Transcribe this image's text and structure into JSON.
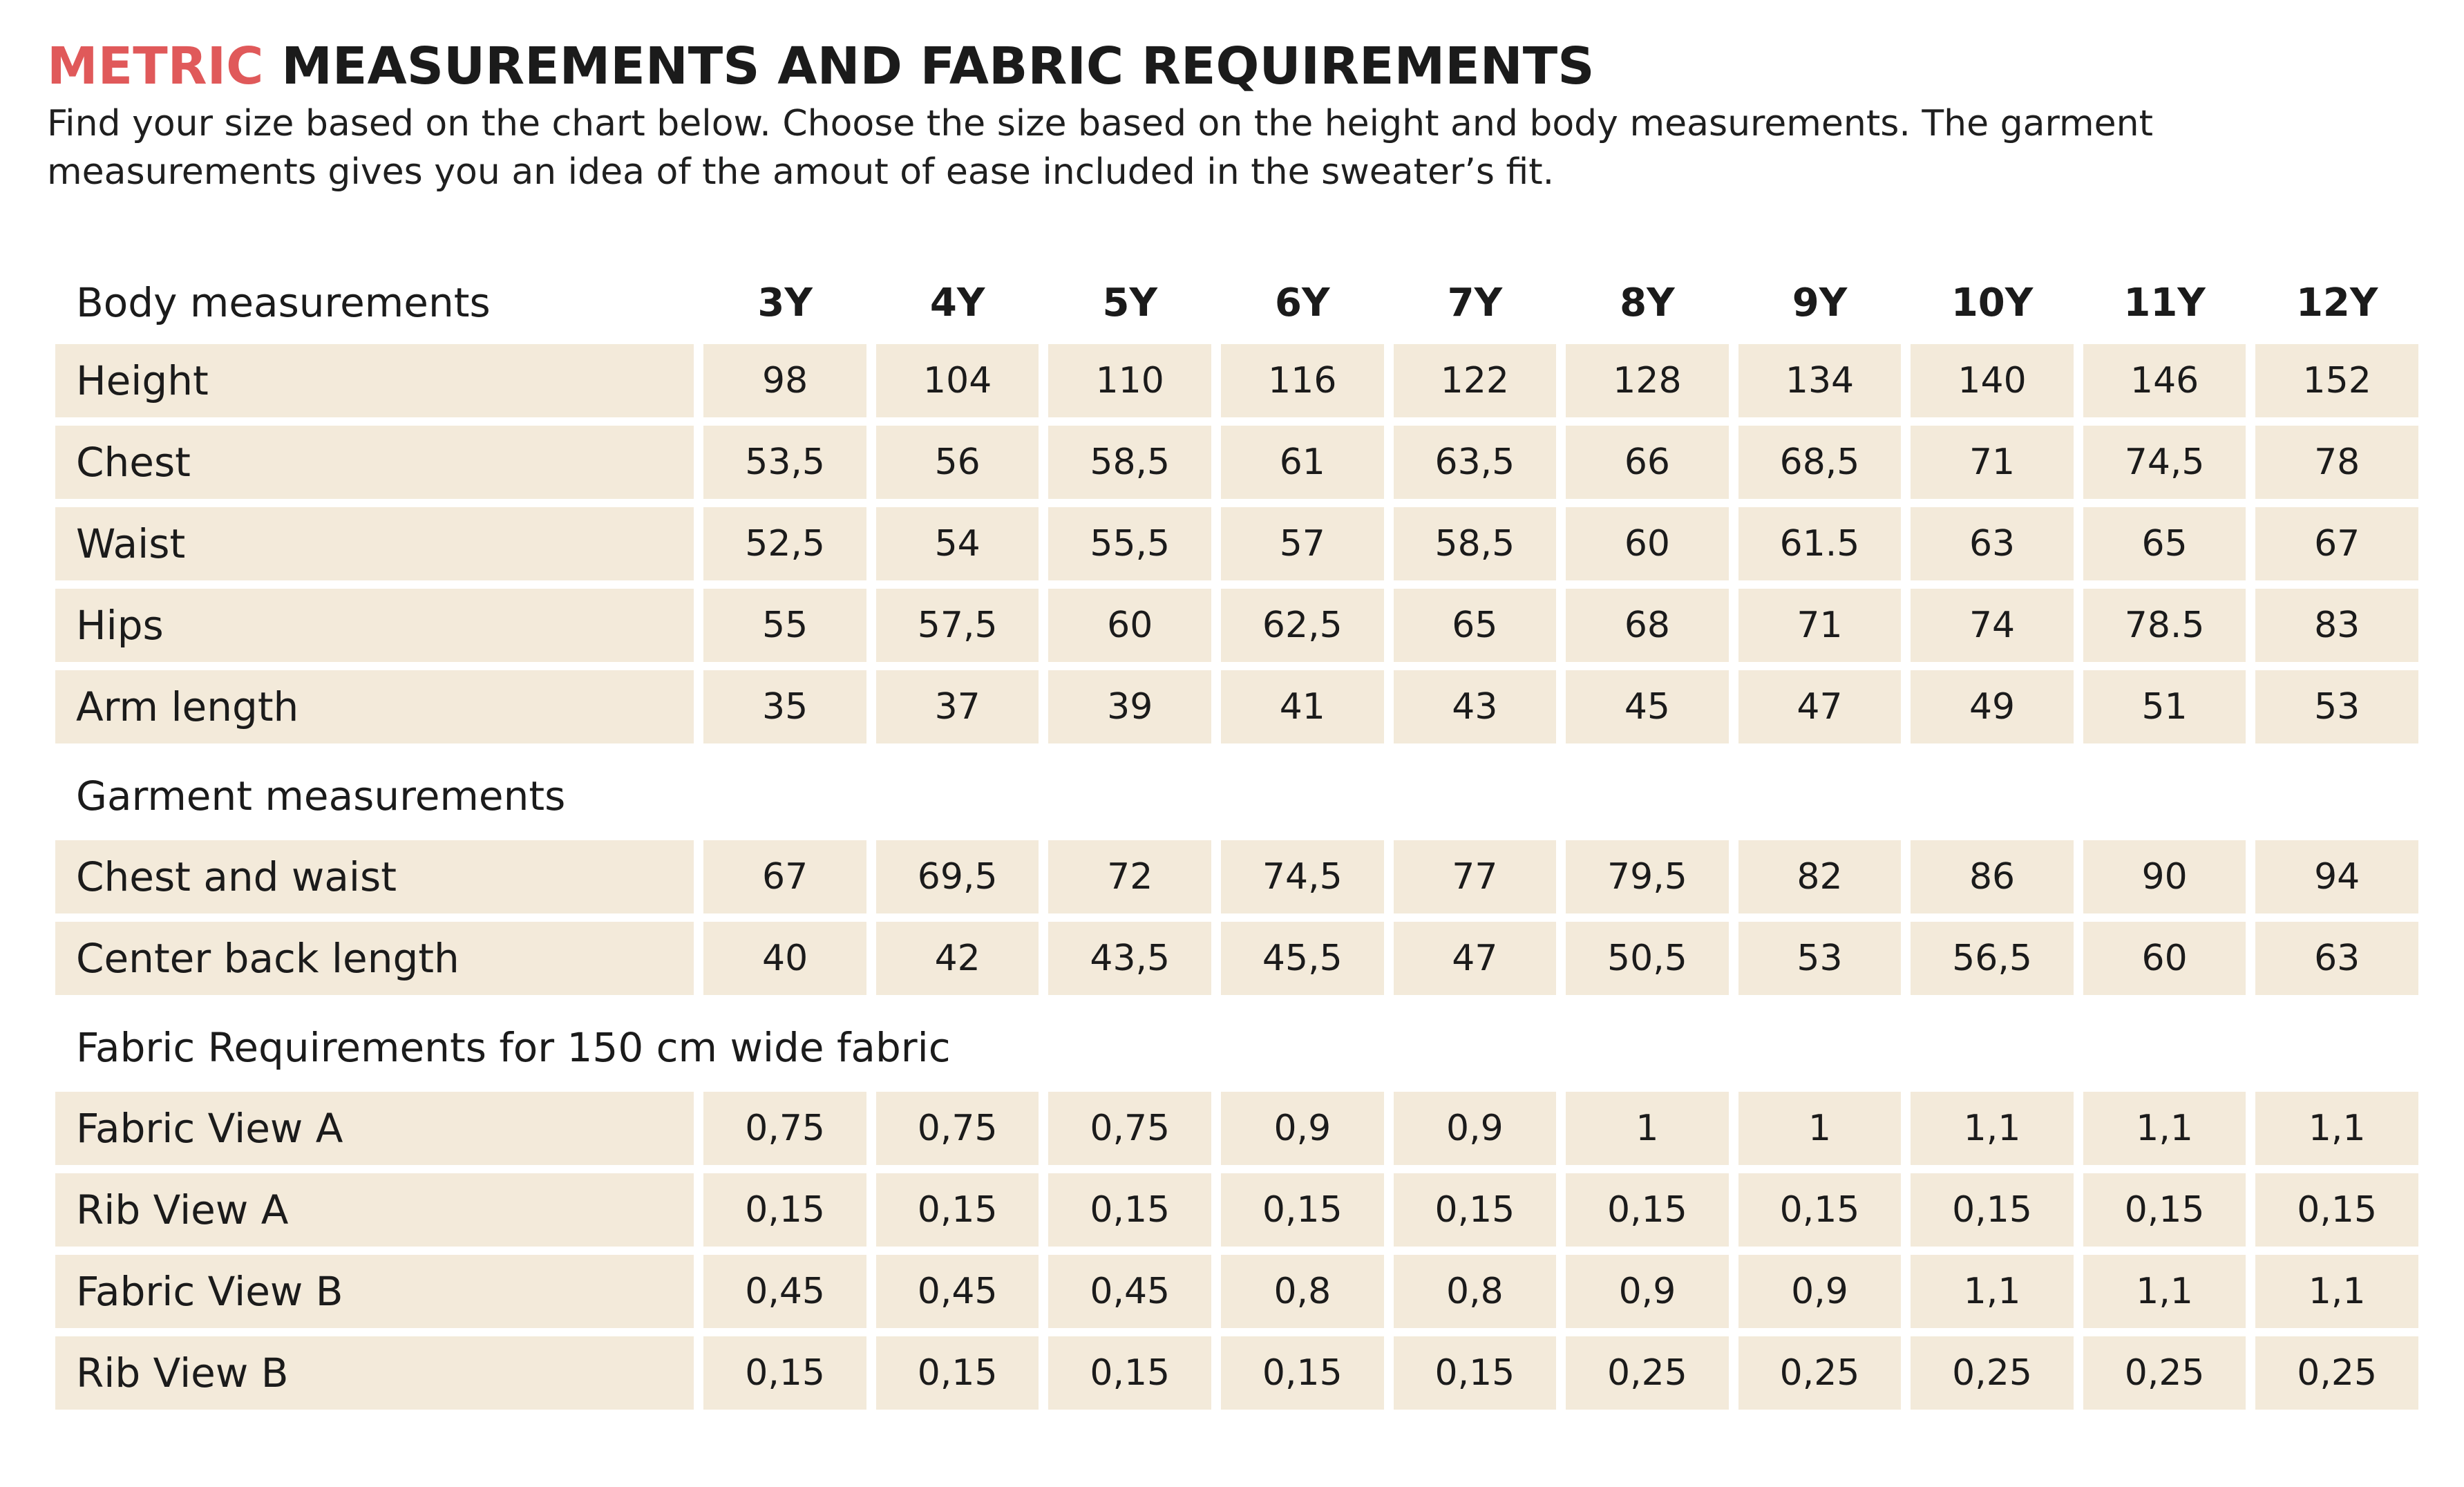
{
  "header": {
    "title_accent": "METRIC",
    "title_rest": " MEASUREMENTS AND FABRIC REQUIREMENTS",
    "description": "Find your size based on the chart below. Choose the size based on the height and body measurements. The garment measurements gives you an idea of the amout of ease included in the sweater’s fit.",
    "accent_color": "#e0595a"
  },
  "table": {
    "header_label": "Body measurements",
    "sizes": [
      "3Y",
      "4Y",
      "5Y",
      "6Y",
      "7Y",
      "8Y",
      "9Y",
      "10Y",
      "11Y",
      "12Y"
    ],
    "row_fill_color": "#f3eada",
    "body_rows": [
      {
        "label": "Height",
        "values": [
          "98",
          "104",
          "110",
          "116",
          "122",
          "128",
          "134",
          "140",
          "146",
          "152"
        ]
      },
      {
        "label": "Chest",
        "values": [
          "53,5",
          "56",
          "58,5",
          "61",
          "63,5",
          "66",
          "68,5",
          "71",
          "74,5",
          "78"
        ]
      },
      {
        "label": "Waist",
        "values": [
          "52,5",
          "54",
          "55,5",
          "57",
          "58,5",
          "60",
          "61.5",
          "63",
          "65",
          "67"
        ]
      },
      {
        "label": "Hips",
        "values": [
          "55",
          "57,5",
          "60",
          "62,5",
          "65",
          "68",
          "71",
          "74",
          "78.5",
          "83"
        ]
      },
      {
        "label": "Arm length",
        "values": [
          "35",
          "37",
          "39",
          "41",
          "43",
          "45",
          "47",
          "49",
          "51",
          "53"
        ]
      }
    ],
    "garment_heading": "Garment measurements",
    "garment_rows": [
      {
        "label": "Chest and waist",
        "values": [
          "67",
          "69,5",
          "72",
          "74,5",
          "77",
          "79,5",
          "82",
          "86",
          "90",
          "94"
        ]
      },
      {
        "label": "Center back length",
        "values": [
          "40",
          "42",
          "43,5",
          "45,5",
          "47",
          "50,5",
          "53",
          "56,5",
          "60",
          "63"
        ]
      }
    ],
    "fabric_heading": "Fabric Requirements for 150 cm wide fabric",
    "fabric_rows": [
      {
        "label": "Fabric View A",
        "values": [
          "0,75",
          "0,75",
          "0,75",
          "0,9",
          "0,9",
          "1",
          "1",
          "1,1",
          "1,1",
          "1,1"
        ]
      },
      {
        "label": "Rib View A",
        "values": [
          "0,15",
          "0,15",
          "0,15",
          "0,15",
          "0,15",
          "0,15",
          "0,15",
          "0,15",
          "0,15",
          "0,15"
        ]
      },
      {
        "label": "Fabric View B",
        "values": [
          "0,45",
          "0,45",
          "0,45",
          "0,8",
          "0,8",
          "0,9",
          "0,9",
          "1,1",
          "1,1",
          "1,1"
        ]
      },
      {
        "label": "Rib View B",
        "values": [
          "0,15",
          "0,15",
          "0,15",
          "0,15",
          "0,15",
          "0,25",
          "0,25",
          "0,25",
          "0,25",
          "0,25"
        ]
      }
    ]
  }
}
